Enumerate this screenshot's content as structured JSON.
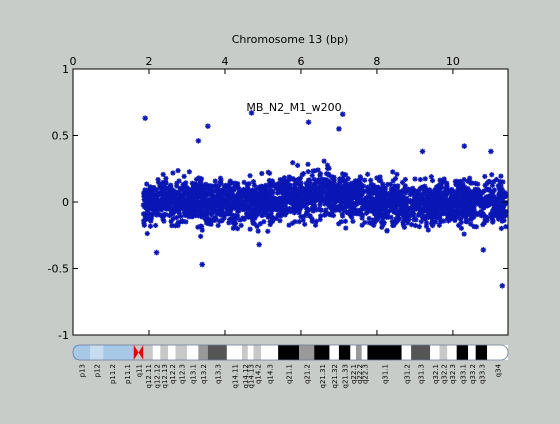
{
  "chart_data": {
    "type": "scatter",
    "title": "MB_N2_M1_w200",
    "xlabel": "Chromosome 13 (bp)",
    "ylabel": "",
    "xlim": [
      0,
      11.45
    ],
    "ylim": [
      -1,
      1
    ],
    "x_ticks": [
      0,
      2,
      4,
      6,
      8,
      10
    ],
    "x_tick_labels": [
      "0",
      "2",
      "4",
      "6",
      "8",
      "10"
    ],
    "y_ticks": [
      -1,
      -0.5,
      0,
      0.5,
      1
    ],
    "y_tick_labels": [
      "-1",
      "-0.5",
      "0",
      "0.5",
      "1"
    ],
    "x_axis_position": "top",
    "grid": false,
    "legend": "none",
    "marker": "asterisk",
    "colors": {
      "points": "#0a17b5",
      "zero_line": "#8a94c8",
      "plot_background": "#ffffff",
      "figure_background": "#c8ccc8"
    },
    "series": [
      {
        "x_range": [
          1.85,
          11.4
        ],
        "y_center": 0,
        "y_spread": 0.3,
        "points": [
          {
            "x": 1.9,
            "y": 0.63
          },
          {
            "x": 3.3,
            "y": 0.46
          },
          {
            "x": 3.55,
            "y": 0.57
          },
          {
            "x": 4.7,
            "y": 0.67
          },
          {
            "x": 6.2,
            "y": 0.6
          },
          {
            "x": 7.1,
            "y": 0.66
          },
          {
            "x": 7.0,
            "y": 0.55
          },
          {
            "x": 2.2,
            "y": -0.38
          },
          {
            "x": 3.4,
            "y": -0.47
          },
          {
            "x": 4.9,
            "y": -0.32
          },
          {
            "x": 9.2,
            "y": 0.38
          },
          {
            "x": 10.3,
            "y": 0.42
          },
          {
            "x": 11.3,
            "y": -0.63
          },
          {
            "x": 11.0,
            "y": 0.38
          },
          {
            "x": 10.8,
            "y": -0.36
          }
        ]
      }
    ]
  },
  "ideogram": {
    "bands": [
      {
        "label": "p13",
        "start": 0.0,
        "end": 0.45,
        "stain": "stalk"
      },
      {
        "label": "p12",
        "start": 0.45,
        "end": 0.8,
        "stain": "stalk-light"
      },
      {
        "label": "p11.2",
        "start": 0.8,
        "end": 1.25,
        "stain": "stalk"
      },
      {
        "label": "p11.1",
        "start": 1.25,
        "end": 1.6,
        "stain": "stalk"
      },
      {
        "label": "q11",
        "start": 1.6,
        "end": 1.85,
        "stain": "acen"
      },
      {
        "label": "q12.11",
        "start": 1.85,
        "end": 2.1,
        "stain": "gpos25"
      },
      {
        "label": "q12.12",
        "start": 2.1,
        "end": 2.3,
        "stain": "gneg"
      },
      {
        "label": "q12.13",
        "start": 2.3,
        "end": 2.5,
        "stain": "gpos25"
      },
      {
        "label": "q12.2",
        "start": 2.5,
        "end": 2.7,
        "stain": "gneg"
      },
      {
        "label": "q12.3",
        "start": 2.7,
        "end": 3.0,
        "stain": "gpos25"
      },
      {
        "label": "q13.1",
        "start": 3.0,
        "end": 3.3,
        "stain": "gneg"
      },
      {
        "label": "q13.2",
        "start": 3.3,
        "end": 3.55,
        "stain": "gpos50"
      },
      {
        "label": "q13.3",
        "start": 3.55,
        "end": 4.05,
        "stain": "gpos75"
      },
      {
        "label": "q14.11",
        "start": 4.05,
        "end": 4.45,
        "stain": "gneg"
      },
      {
        "label": "q14.12",
        "start": 4.45,
        "end": 4.6,
        "stain": "gpos25"
      },
      {
        "label": "q14.13",
        "start": 4.6,
        "end": 4.75,
        "stain": "gneg"
      },
      {
        "label": "q14.2",
        "start": 4.75,
        "end": 4.95,
        "stain": "gpos25"
      },
      {
        "label": "q14.3",
        "start": 4.95,
        "end": 5.4,
        "stain": "gneg"
      },
      {
        "label": "q21.1",
        "start": 5.4,
        "end": 5.95,
        "stain": "gpos100"
      },
      {
        "label": "q21.2",
        "start": 5.95,
        "end": 6.35,
        "stain": "gpos50"
      },
      {
        "label": "q21.31",
        "start": 6.35,
        "end": 6.75,
        "stain": "gpos100"
      },
      {
        "label": "q21.32",
        "start": 6.75,
        "end": 7.0,
        "stain": "gneg"
      },
      {
        "label": "q21.33",
        "start": 7.0,
        "end": 7.3,
        "stain": "gpos100"
      },
      {
        "label": "q22.1",
        "start": 7.3,
        "end": 7.45,
        "stain": "gneg"
      },
      {
        "label": "q22.2",
        "start": 7.45,
        "end": 7.6,
        "stain": "gpos50"
      },
      {
        "label": "q22.3",
        "start": 7.6,
        "end": 7.75,
        "stain": "gneg"
      },
      {
        "label": "q31.1",
        "start": 7.75,
        "end": 8.65,
        "stain": "gpos100"
      },
      {
        "label": "q31.2",
        "start": 8.65,
        "end": 8.9,
        "stain": "gneg"
      },
      {
        "label": "q31.3",
        "start": 8.9,
        "end": 9.4,
        "stain": "gpos75"
      },
      {
        "label": "q32.1",
        "start": 9.4,
        "end": 9.65,
        "stain": "gneg"
      },
      {
        "label": "q32.2",
        "start": 9.65,
        "end": 9.85,
        "stain": "gpos25"
      },
      {
        "label": "q32.3",
        "start": 9.85,
        "end": 10.1,
        "stain": "gneg"
      },
      {
        "label": "q33.1",
        "start": 10.1,
        "end": 10.4,
        "stain": "gpos100"
      },
      {
        "label": "q33.2",
        "start": 10.4,
        "end": 10.6,
        "stain": "gneg"
      },
      {
        "label": "q33.3",
        "start": 10.6,
        "end": 10.9,
        "stain": "gpos100"
      },
      {
        "label": "q34",
        "start": 10.9,
        "end": 11.45,
        "stain": "gneg"
      }
    ],
    "stain_colors": {
      "gneg": "#ffffff",
      "gpos25": "#c8c8c8",
      "gpos50": "#999999",
      "gpos75": "#555555",
      "gpos100": "#000000",
      "acen": "#e80000",
      "stalk": "#a8c8e8",
      "stalk-light": "#c8dcf0"
    }
  }
}
